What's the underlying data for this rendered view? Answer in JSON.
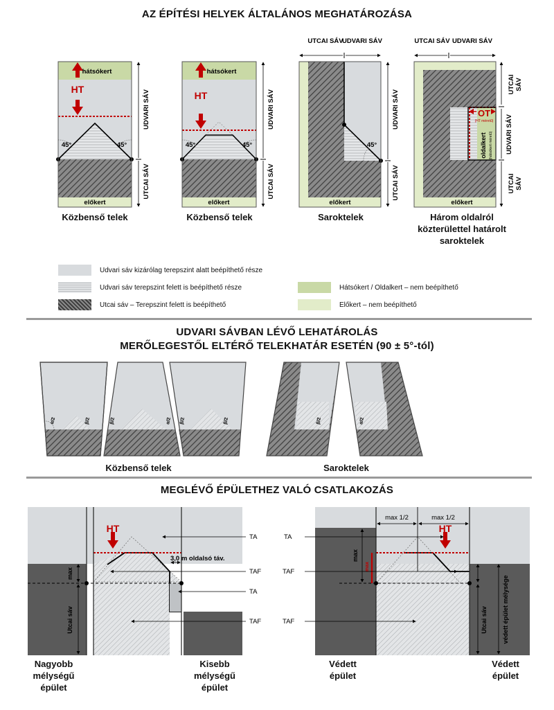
{
  "section1": {
    "title": "AZ ÉPÍTÉSI HELYEK ÁLTALÁNOS MEGHATÁROZÁSA",
    "plots": [
      {
        "caption": "Közbenső telek",
        "back_label": "hátsókert",
        "front_label": "előkert",
        "ht": "HT",
        "angle": "45°",
        "side_labels": [
          "UDVARI SÁV",
          "UTCAI SÁV"
        ]
      },
      {
        "caption": "Közbenső telek",
        "back_label": "hátsókert",
        "front_label": "előkert",
        "ht": "HT",
        "angle": "45°",
        "side_labels": [
          "UDVARI SÁV",
          "UTCAI SÁV"
        ]
      },
      {
        "caption": "Saroktelek",
        "front_label": "előkert",
        "angle": "45°",
        "top_labels": [
          "UTCAI SÁV",
          "UDVARI SÁV"
        ],
        "side_labels": [
          "UDVARI SÁV",
          "UTCAI SÁV"
        ]
      },
      {
        "caption": "Három oldalról közterülettel határolt saroktelek",
        "front_label": "előkert",
        "ot": "OT",
        "ot_note": "(HT méretű)",
        "side_garden": "oldalkert",
        "side_garden_note": "(hátsókert méretű)",
        "top_labels": [
          "UTCAI SÁV",
          "UDVARI SÁV"
        ],
        "side_labels": [
          "UTCAI SÁV",
          "UDVARI SÁV",
          "UTCAI SÁV"
        ]
      }
    ],
    "legend": [
      {
        "text": "Udvari sáv kizárólag terepszint alatt beépíthető része",
        "swatch": "light-grey"
      },
      {
        "text": "Udvari sáv terepszint felett is beépíthető része",
        "swatch": "light-hatch"
      },
      {
        "text": "Utcai sáv – Terepszint felett is beépíthető",
        "swatch": "dark-hatch"
      },
      {
        "text": "Hátsókert / Oldalkert – nem beépíthető",
        "swatch": "green-dark"
      },
      {
        "text": "Előkert – nem beépíthető",
        "swatch": "green-light"
      }
    ]
  },
  "section2": {
    "title_line1": "UDVARI SÁVBAN LÉVŐ LEHATÁROLÁS",
    "title_line2": "MERŐLEGESTŐL ELTÉRŐ TELEKHATÁR ESETÉN (90 ± 5°-tól)",
    "captions": [
      "Közbenső telek",
      "Saroktelek"
    ],
    "angle_labels": [
      "α/2",
      "β/2"
    ]
  },
  "section3": {
    "title": "MEGLÉVŐ ÉPÜLETHEZ VALÓ CSATLAKOZÁS",
    "left": {
      "ht": "HT",
      "distance": "3,0 m oldalsó táv.",
      "max": "max",
      "street": "Utcai sáv",
      "levels": [
        "TA",
        "TAF",
        "TA",
        "TAF"
      ],
      "captions": [
        "Nagyobb mélységű épület",
        "Kisebb mélységű épület"
      ]
    },
    "right": {
      "ht": "HT",
      "max_half": "max 1/2",
      "max": "max",
      "street": "Utcai sáv",
      "depth": "védett épület mélysége",
      "levels": [
        "TA",
        "TAF",
        "TAF"
      ],
      "captions": [
        "Védett épület",
        "Védett épület"
      ]
    }
  },
  "colors": {
    "red": "#c00000",
    "light_grey": "#d8dbde",
    "dark_building": "#5a5a5a",
    "green_dark": "#c9d9a6",
    "green_light": "#e2ecc9"
  }
}
